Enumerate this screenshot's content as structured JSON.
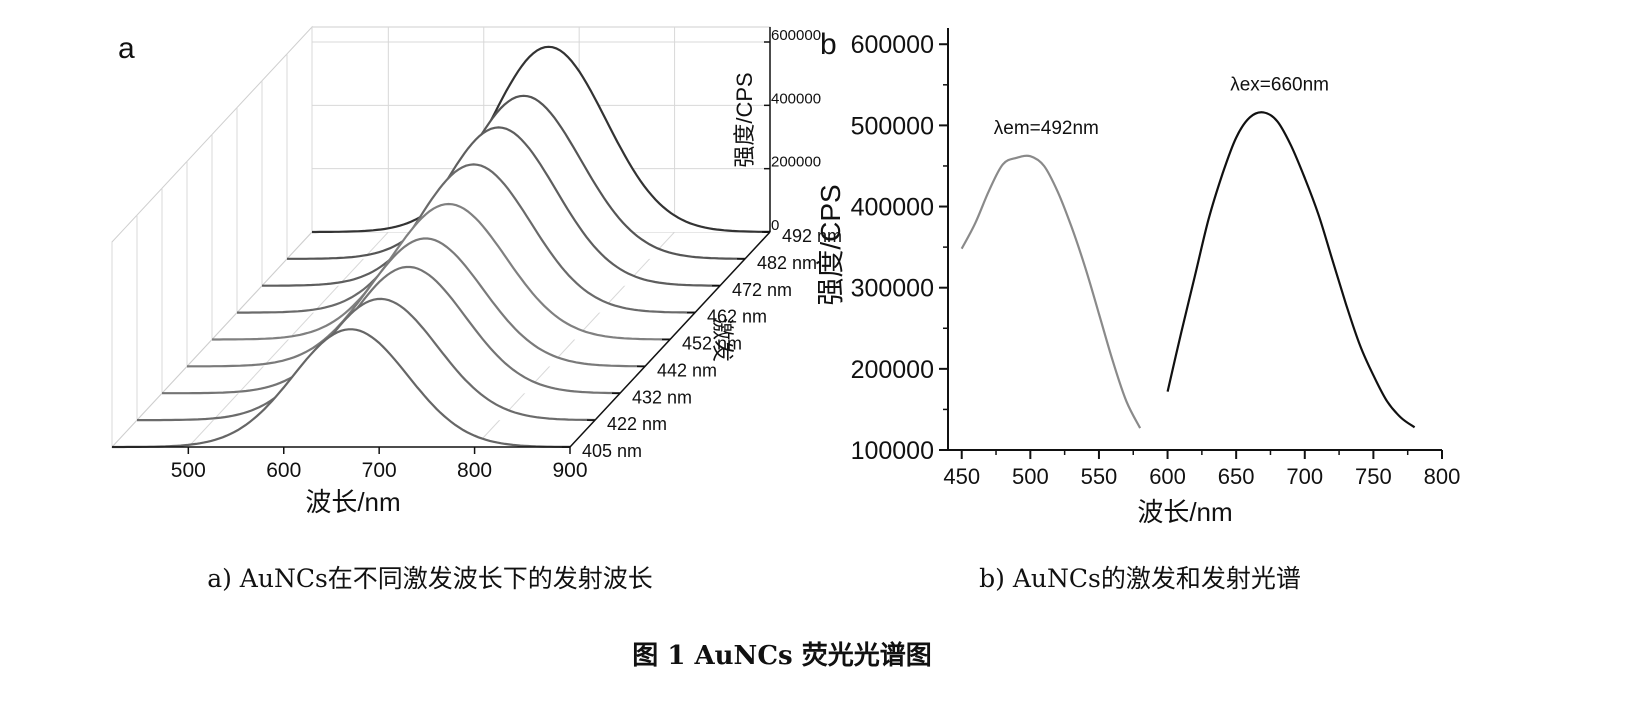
{
  "figure": {
    "caption": "图 1    AuNCs 荧光光谱图",
    "subcaption_a": "a) AuNCs在不同激发波长下的发射波长",
    "subcaption_b": "b) AuNCs的激发和发射光谱"
  },
  "chart_data": [
    {
      "type": "line",
      "panel_label": "a",
      "view": "3d-waterfall",
      "xlabel": "波长/nm",
      "ylabel": "激发",
      "zlabel": "强度/CPS",
      "xlim": [
        420,
        900
      ],
      "x_ticks": [
        "500",
        "600",
        "700",
        "800",
        "900"
      ],
      "zlim": [
        0,
        600000
      ],
      "z_ticks": [
        "0",
        "200000",
        "400000",
        "600000"
      ],
      "y_ticks": [
        "405 nm",
        "422 nm",
        "432 nm",
        "442 nm",
        "452 nm",
        "462 nm",
        "472 nm",
        "482 nm",
        "492 nm"
      ],
      "grid": true,
      "series": [
        {
          "name": "405 nm",
          "peak_x": 670,
          "peak_z": 372000,
          "sigma": 60
        },
        {
          "name": "422 nm",
          "peak_x": 675,
          "peak_z": 383000,
          "sigma": 60
        },
        {
          "name": "432 nm",
          "peak_x": 678,
          "peak_z": 399000,
          "sigma": 60
        },
        {
          "name": "442 nm",
          "peak_x": 670,
          "peak_z": 404000,
          "sigma": 60
        },
        {
          "name": "452 nm",
          "peak_x": 668,
          "peak_z": 428000,
          "sigma": 60
        },
        {
          "name": "462 nm",
          "peak_x": 668,
          "peak_z": 468000,
          "sigma": 60
        },
        {
          "name": "472 nm",
          "peak_x": 668,
          "peak_z": 500000,
          "sigma": 60
        },
        {
          "name": "482 nm",
          "peak_x": 668,
          "peak_z": 515000,
          "sigma": 60
        },
        {
          "name": "492 nm",
          "peak_x": 668,
          "peak_z": 585000,
          "sigma": 60
        }
      ]
    },
    {
      "type": "line",
      "panel_label": "b",
      "xlabel": "波长/nm",
      "ylabel": "强度/CPS",
      "xlim": [
        440,
        800
      ],
      "ylim": [
        100000,
        620000
      ],
      "x_ticks": [
        450,
        500,
        550,
        600,
        650,
        700,
        750,
        800
      ],
      "y_ticks": [
        100000,
        200000,
        300000,
        400000,
        500000,
        600000
      ],
      "grid": false,
      "series": [
        {
          "label": "λem=492nm",
          "color": "#8a8a8a",
          "x": [
            450,
            460,
            470,
            480,
            490,
            500,
            510,
            520,
            530,
            540,
            550,
            560,
            570,
            580
          ],
          "y": [
            348000,
            380000,
            420000,
            452000,
            460000,
            462000,
            450000,
            418000,
            375000,
            325000,
            268000,
            210000,
            160000,
            127000
          ]
        },
        {
          "label": "λex=660nm",
          "color": "#111111",
          "x": [
            600,
            610,
            620,
            630,
            640,
            650,
            660,
            670,
            680,
            690,
            700,
            710,
            720,
            730,
            740,
            750,
            760,
            770,
            780
          ],
          "y": [
            172000,
            245000,
            315000,
            385000,
            440000,
            485000,
            510000,
            516000,
            505000,
            475000,
            435000,
            390000,
            335000,
            280000,
            230000,
            192000,
            160000,
            140000,
            128000
          ]
        }
      ]
    }
  ]
}
